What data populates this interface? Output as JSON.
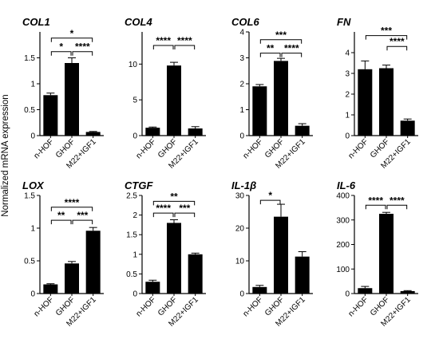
{
  "figure": {
    "ylabel": "Normalized mRNA expression"
  },
  "chart_data": [
    {
      "type": "bar",
      "title": "COL1",
      "categories": [
        "n-HOF",
        "GHOF",
        "M22+IGF1"
      ],
      "values": [
        0.78,
        1.4,
        0.07
      ],
      "errors": [
        0.04,
        0.1,
        0.01
      ],
      "ylim": [
        0,
        2.0
      ],
      "ticks": [
        0,
        0.5,
        1.0,
        1.5
      ],
      "brackets": [
        {
          "from": 0,
          "to": 1,
          "y": 1.62,
          "label": "*"
        },
        {
          "from": 1,
          "to": 2,
          "y": 1.62,
          "label": "****"
        },
        {
          "from": 0,
          "to": 2,
          "y": 1.88,
          "label": "*"
        }
      ]
    },
    {
      "type": "bar",
      "title": "COL4",
      "categories": [
        "n-HOF",
        "GHOF",
        "M22+IGF1"
      ],
      "values": [
        1.1,
        9.8,
        1.0
      ],
      "errors": [
        0.1,
        0.45,
        0.25
      ],
      "ylim": [
        0,
        14.5
      ],
      "ticks": [
        0,
        5,
        10
      ],
      "brackets": [
        {
          "from": 0,
          "to": 1,
          "y": 12.6,
          "label": "****"
        },
        {
          "from": 1,
          "to": 2,
          "y": 12.6,
          "label": "****"
        }
      ]
    },
    {
      "type": "bar",
      "title": "COL6",
      "categories": [
        "n-HOF",
        "GHOF",
        "M22+IGF1"
      ],
      "values": [
        1.9,
        2.88,
        0.38
      ],
      "errors": [
        0.07,
        0.1,
        0.08
      ],
      "ylim": [
        0,
        4.0
      ],
      "ticks": [
        0,
        1,
        2,
        3,
        4
      ],
      "brackets": [
        {
          "from": 0,
          "to": 1,
          "y": 3.18,
          "label": "**"
        },
        {
          "from": 1,
          "to": 2,
          "y": 3.18,
          "label": "****"
        },
        {
          "from": 0,
          "to": 2,
          "y": 3.7,
          "label": "***"
        }
      ]
    },
    {
      "type": "bar",
      "title": "FN",
      "categories": [
        "n-HOF",
        "GHOF",
        "M22+IGF1"
      ],
      "values": [
        3.2,
        3.25,
        0.72
      ],
      "errors": [
        0.4,
        0.15,
        0.08
      ],
      "ylim": [
        0,
        5.0
      ],
      "ticks": [
        0,
        1,
        2,
        3,
        4
      ],
      "brackets": [
        {
          "from": 1,
          "to": 2,
          "y": 4.3,
          "label": "****"
        },
        {
          "from": 0,
          "to": 2,
          "y": 4.82,
          "label": "***"
        }
      ]
    },
    {
      "type": "bar",
      "title": "LOX",
      "categories": [
        "n-HOF",
        "GHOF",
        "M22+IGF1"
      ],
      "values": [
        0.14,
        0.46,
        0.96
      ],
      "errors": [
        0.01,
        0.03,
        0.05
      ],
      "ylim": [
        0,
        1.5
      ],
      "ticks": [
        0,
        0.5,
        1.0,
        1.5
      ],
      "brackets": [
        {
          "from": 0,
          "to": 1,
          "y": 1.12,
          "label": "**"
        },
        {
          "from": 1,
          "to": 2,
          "y": 1.12,
          "label": "***"
        },
        {
          "from": 0,
          "to": 2,
          "y": 1.32,
          "label": "****"
        }
      ]
    },
    {
      "type": "bar",
      "title": "CTGF",
      "categories": [
        "n-HOF",
        "GHOF",
        "M22+IGF1"
      ],
      "values": [
        0.3,
        1.8,
        1.0
      ],
      "errors": [
        0.04,
        0.08,
        0.03
      ],
      "ylim": [
        0,
        2.5
      ],
      "ticks": [
        0,
        0.5,
        1.0,
        1.5,
        2.0,
        2.5
      ],
      "brackets": [
        {
          "from": 0,
          "to": 1,
          "y": 2.05,
          "label": "****"
        },
        {
          "from": 1,
          "to": 2,
          "y": 2.05,
          "label": "***"
        },
        {
          "from": 0,
          "to": 2,
          "y": 2.35,
          "label": "**"
        }
      ]
    },
    {
      "type": "bar",
      "title": "IL-1β",
      "categories": [
        "n-HOF",
        "GHOF",
        "M22+IGF1"
      ],
      "values": [
        2.0,
        23.5,
        11.3
      ],
      "errors": [
        0.5,
        3.8,
        1.5
      ],
      "ylim": [
        0,
        30
      ],
      "ticks": [
        0,
        10,
        20,
        30
      ],
      "brackets": [
        {
          "from": 0,
          "to": 1,
          "y": 28.5,
          "label": "*"
        }
      ]
    },
    {
      "type": "bar",
      "title": "IL-6",
      "categories": [
        "n-HOF",
        "GHOF",
        "M22+IGF1"
      ],
      "values": [
        22,
        325,
        10
      ],
      "errors": [
        7,
        6,
        2
      ],
      "ylim": [
        0,
        400
      ],
      "ticks": [
        0,
        100,
        200,
        300,
        400
      ],
      "brackets": [
        {
          "from": 0,
          "to": 1,
          "y": 360,
          "label": "****"
        },
        {
          "from": 1,
          "to": 2,
          "y": 360,
          "label": "****"
        }
      ]
    }
  ]
}
